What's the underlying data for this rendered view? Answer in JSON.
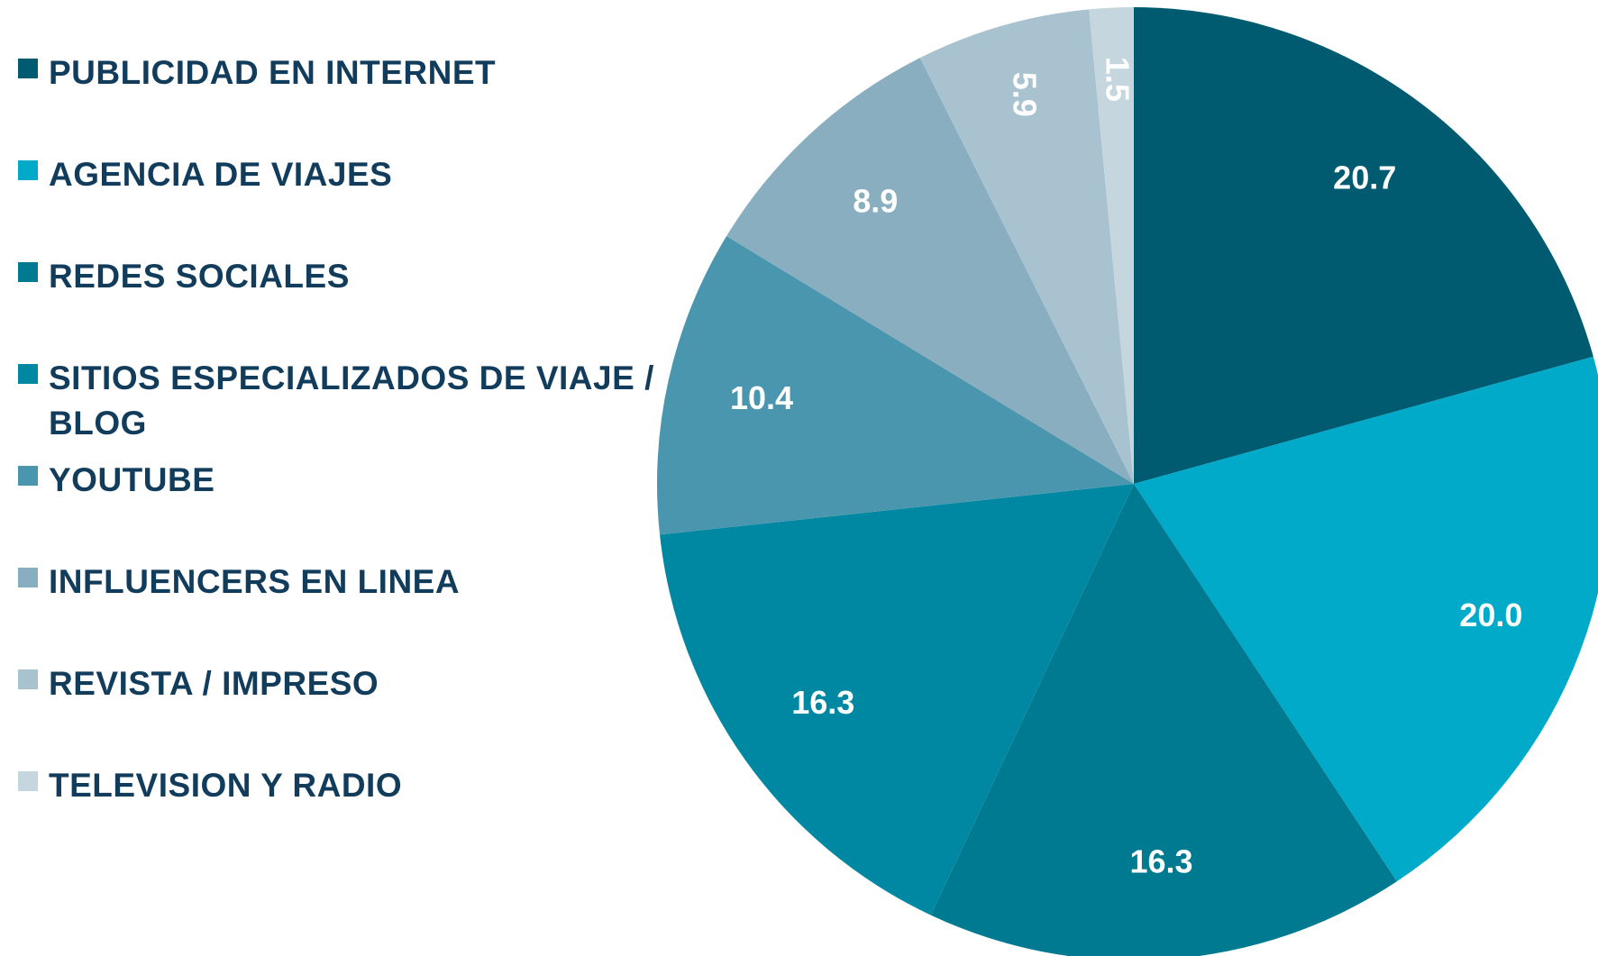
{
  "chart_data": {
    "type": "pie",
    "categories": [
      "PUBLICIDAD EN INTERNET",
      "AGENCIA DE VIAJES",
      "REDES SOCIALES",
      "SITIOS ESPECIALIZADOS DE VIAJE / BLOG",
      "YOUTUBE",
      "INFLUENCERS EN LINEA",
      "REVISTA / IMPRESO",
      "TELEVISION Y RADIO"
    ],
    "values": [
      20.7,
      20.0,
      16.3,
      16.3,
      10.4,
      8.9,
      5.9,
      1.5
    ],
    "value_labels": [
      "20.7",
      "20.0",
      "16.3",
      "16.3",
      "10.4",
      "8.9",
      "5.9",
      "1.5"
    ],
    "colors": [
      "#005a70",
      "#00aac8",
      "#007a90",
      "#0088a3",
      "#4a96ae",
      "#88aebf",
      "#a8c3cf",
      "#c5d6de"
    ],
    "legend": "left"
  }
}
